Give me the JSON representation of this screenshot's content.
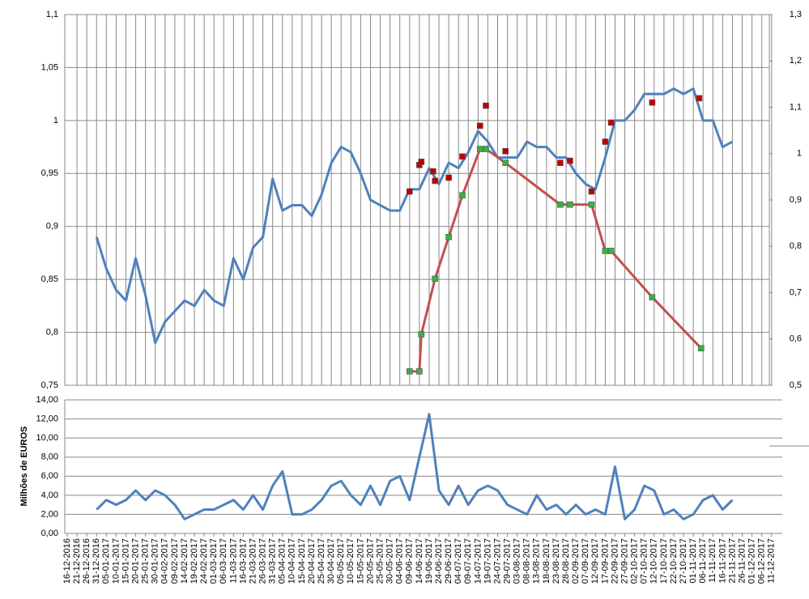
{
  "chart_data": [
    {
      "type": "line",
      "ylim": [
        0.75,
        1.1
      ],
      "yticks": [
        {
          "value": 0.75,
          "label": "0,75"
        },
        {
          "value": 0.8,
          "label": "0,8"
        },
        {
          "value": 0.85,
          "label": "0,85"
        },
        {
          "value": 0.9,
          "label": "0,9"
        },
        {
          "value": 0.95,
          "label": "0,95"
        },
        1,
        {
          "value": 1.05,
          "label": "1,05"
        },
        {
          "value": 1.1,
          "label": "1,1"
        }
      ],
      "y2lim": [
        0.5,
        1.3
      ],
      "y2ticks": [
        {
          "value": 0.5,
          "label": "0,5"
        },
        {
          "value": 0.6,
          "label": "0,6"
        },
        {
          "value": 0.7,
          "label": "0,7"
        },
        {
          "value": 0.8,
          "label": "0,8"
        },
        {
          "value": 0.9,
          "label": "0,9"
        },
        1,
        {
          "value": 1.1,
          "label": "1,1"
        },
        {
          "value": 1.2,
          "label": "1,2"
        },
        {
          "value": 1.3,
          "label": "1,3"
        }
      ],
      "grid": true,
      "series": [
        {
          "color": "#4f81bd",
          "values": [
            null,
            null,
            null,
            0.89,
            0.86,
            0.84,
            0.83,
            0.87,
            0.835,
            0.79,
            0.81,
            0.82,
            0.83,
            0.825,
            0.84,
            0.83,
            0.825,
            0.87,
            0.85,
            0.88,
            0.89,
            0.945,
            0.915,
            0.92,
            0.92,
            0.91,
            0.93,
            0.96,
            0.975,
            0.97,
            0.95,
            0.925,
            0.92,
            0.915,
            0.915,
            0.935,
            0.935,
            0.955,
            0.94,
            0.96,
            0.955,
            0.97,
            0.99,
            0.98,
            0.965,
            0.965,
            0.965,
            0.98,
            0.975,
            0.975,
            0.965,
            0.965,
            0.95,
            0.94,
            0.935,
            0.965,
            1.0,
            1.0,
            1.01,
            1.025,
            1.025,
            1.025,
            1.03,
            1.025,
            1.03,
            1.0,
            1.0,
            0.975,
            0.98,
            null,
            null,
            null,
            null
          ]
        },
        {
          "color": "#c00000",
          "line": false,
          "x": [
            "09-06-2017",
            "14-06-2017",
            "15-06-2017",
            "21-06-2017",
            "22-06-2017",
            "29-06-2017",
            "06-07-2017",
            "15-07-2017",
            "18-07-2017",
            "28-07-2017",
            "25-08-2017",
            "30-08-2017",
            "10-09-2017",
            "17-09-2017",
            "20-09-2017",
            "11-10-2017",
            "04-11-2017"
          ],
          "values": [
            0.933,
            0.958,
            0.961,
            0.952,
            0.943,
            0.946,
            0.966,
            0.995,
            1.014,
            0.971,
            0.96,
            0.962,
            0.933,
            0.98,
            0.998,
            1.017,
            1.021
          ]
        },
        {
          "color": "#c0504d",
          "marker_color": "#3cb043",
          "line": true,
          "axis": "y2",
          "x": [
            "09-06-2017",
            "14-06-2017",
            "15-06-2017",
            "22-06-2017",
            "29-06-2017",
            "06-07-2017",
            "15-07-2017",
            "18-07-2017",
            "28-07-2017",
            "25-08-2017",
            "30-08-2017",
            "10-09-2017",
            "17-09-2017",
            "20-09-2017",
            "11-10-2017",
            "05-11-2017"
          ],
          "values": [
            0.53,
            0.53,
            0.61,
            0.73,
            0.82,
            0.91,
            1.01,
            1.01,
            0.98,
            0.89,
            0.89,
            0.89,
            0.79,
            0.79,
            0.69,
            0.58
          ]
        }
      ]
    },
    {
      "type": "line",
      "ylabel": "Milhões de EUROS",
      "ylim": [
        0,
        14
      ],
      "yticks": [
        {
          "value": 0,
          "label": "0,00"
        },
        {
          "value": 2,
          "label": "2,00"
        },
        {
          "value": 4,
          "label": "4,00"
        },
        {
          "value": 6,
          "label": "6,00"
        },
        {
          "value": 8,
          "label": "8,00"
        },
        {
          "value": 10,
          "label": "10,00"
        },
        {
          "value": 12,
          "label": "12,00"
        },
        {
          "value": 14,
          "label": "14,00"
        }
      ],
      "grid": true,
      "categories": [
        "16-12-2016",
        "21-12-2016",
        "26-12-2016",
        "31-12-2016",
        "05-01-2017",
        "10-01-2017",
        "15-01-2017",
        "20-01-2017",
        "25-01-2017",
        "30-01-2017",
        "04-02-2017",
        "09-02-2017",
        "14-02-2017",
        "19-02-2017",
        "24-02-2017",
        "01-03-2017",
        "06-03-2017",
        "11-03-2017",
        "16-03-2017",
        "21-03-2017",
        "26-03-2017",
        "31-03-2017",
        "05-04-2017",
        "10-04-2017",
        "15-04-2017",
        "20-04-2017",
        "25-04-2017",
        "30-04-2017",
        "05-05-2017",
        "10-05-2017",
        "15-05-2017",
        "20-05-2017",
        "25-05-2017",
        "30-05-2017",
        "04-06-2017",
        "09-06-2017",
        "14-06-2017",
        "19-06-2017",
        "24-06-2017",
        "29-06-2017",
        "04-07-2017",
        "09-07-2017",
        "14-07-2017",
        "19-07-2017",
        "24-07-2017",
        "29-07-2017",
        "03-08-2017",
        "08-08-2017",
        "13-08-2017",
        "18-08-2017",
        "23-08-2017",
        "28-08-2017",
        "02-09-2017",
        "07-09-2017",
        "12-09-2017",
        "17-09-2017",
        "22-09-2017",
        "27-09-2017",
        "02-10-2017",
        "07-10-2017",
        "12-10-2017",
        "17-10-2017",
        "22-10-2017",
        "27-10-2017",
        "01-11-2017",
        "06-11-2017",
        "11-11-2017",
        "16-11-2017",
        "21-11-2017",
        "26-11-2017",
        "01-12-2017",
        "06-12-2017",
        "11-12-2017"
      ],
      "series": [
        {
          "color": "#4f81bd",
          "values": [
            null,
            null,
            null,
            2.5,
            3.5,
            3,
            3.5,
            4.5,
            3.5,
            4.5,
            4,
            3,
            1.5,
            2,
            2.5,
            2.5,
            3,
            3.5,
            2.5,
            4,
            2.5,
            5,
            6.5,
            2,
            2,
            2.5,
            3.5,
            5,
            5.5,
            4,
            3,
            5,
            3,
            5.5,
            6,
            3.5,
            8,
            12.5,
            4.5,
            3,
            5,
            3,
            4.5,
            5,
            4.5,
            3,
            2.5,
            2,
            4,
            2.5,
            3,
            2,
            3,
            2,
            2.5,
            2,
            7,
            1.5,
            2.5,
            5,
            4.5,
            2,
            2.5,
            1.5,
            2,
            3.5,
            4,
            2.5,
            3.5,
            null,
            null,
            null,
            null
          ]
        }
      ]
    }
  ]
}
